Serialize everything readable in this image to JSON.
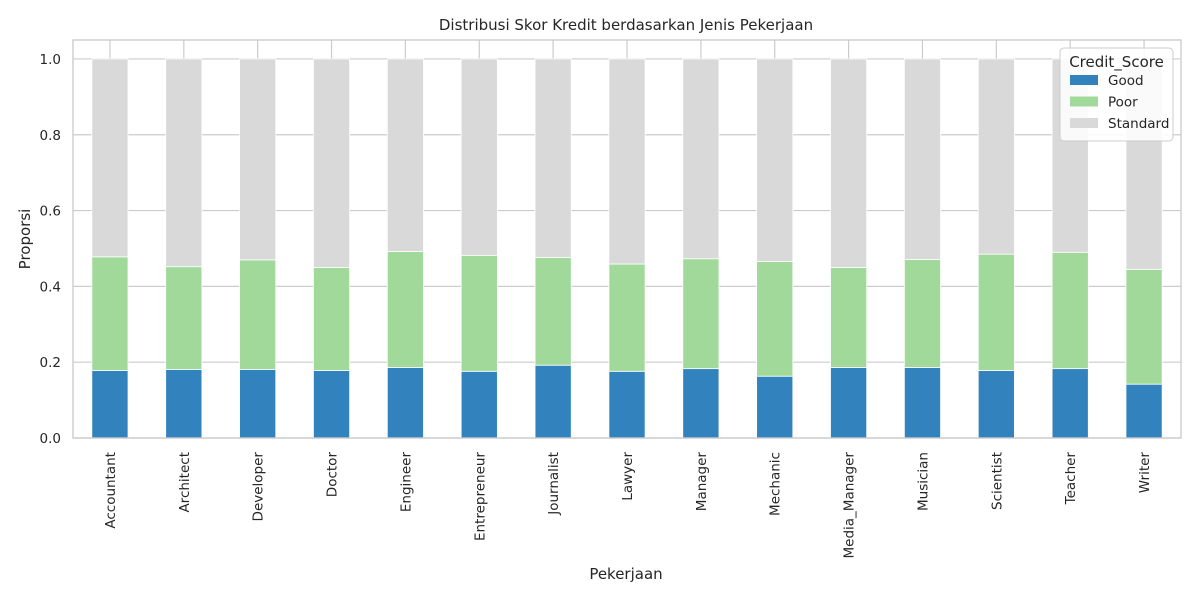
{
  "chart_data": {
    "type": "bar",
    "stacked": true,
    "title": "Distribusi Skor Kredit berdasarkan Jenis Pekerjaan",
    "xlabel": "Pekerjaan",
    "ylabel": "Proporsi",
    "ylim": [
      0,
      1.05
    ],
    "yticks": [
      0.0,
      0.2,
      0.4,
      0.6,
      0.8,
      1.0
    ],
    "grid": true,
    "legend": {
      "title": "Credit_Score",
      "placement": "top-right"
    },
    "categories": [
      "Accountant",
      "Architect",
      "Developer",
      "Doctor",
      "Engineer",
      "Entrepreneur",
      "Journalist",
      "Lawyer",
      "Manager",
      "Mechanic",
      "Media_Manager",
      "Musician",
      "Scientist",
      "Teacher",
      "Writer"
    ],
    "series": [
      {
        "name": "Good",
        "color": "#3182bd",
        "values": [
          0.178,
          0.181,
          0.181,
          0.178,
          0.186,
          0.176,
          0.192,
          0.176,
          0.183,
          0.163,
          0.186,
          0.186,
          0.178,
          0.183,
          0.142
        ]
      },
      {
        "name": "Poor",
        "color": "#a1d99b",
        "values": [
          0.3,
          0.271,
          0.289,
          0.272,
          0.306,
          0.306,
          0.284,
          0.283,
          0.29,
          0.303,
          0.264,
          0.285,
          0.307,
          0.307,
          0.303
        ]
      },
      {
        "name": "Standard",
        "color": "#d9d9d9",
        "values": [
          0.522,
          0.548,
          0.53,
          0.55,
          0.508,
          0.518,
          0.524,
          0.541,
          0.527,
          0.534,
          0.55,
          0.529,
          0.515,
          0.51,
          0.555
        ]
      }
    ]
  }
}
